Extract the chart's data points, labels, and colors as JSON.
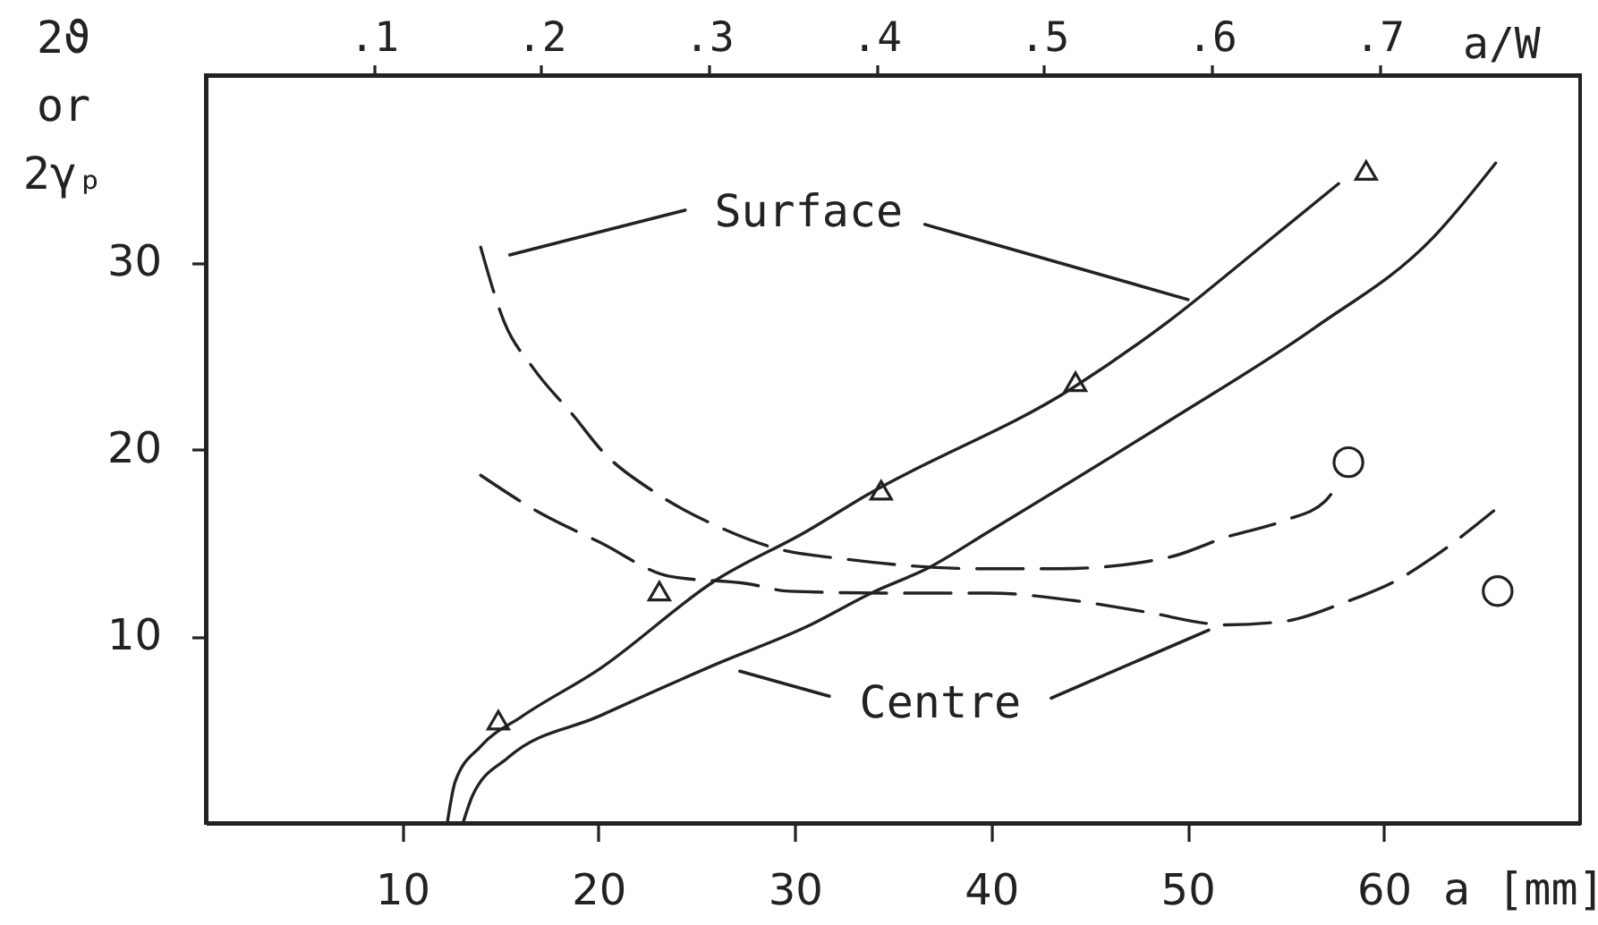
{
  "chart_data": {
    "type": "line",
    "xlabel": "a [mm]",
    "ylabel": "2ϑ or 2γₚ",
    "x2label": "a/W",
    "xlim": [
      0,
      70
    ],
    "xticks": [
      10,
      20,
      30,
      40,
      50,
      60
    ],
    "ylim": [
      0,
      40
    ],
    "yticks": [
      10,
      20,
      30
    ],
    "x2lim": [
      0,
      0.82
    ],
    "x2ticks": [
      {
        "value": 0.1,
        "label": ".1"
      },
      {
        "value": 0.2,
        "label": ".2"
      },
      {
        "value": 0.3,
        "label": ".3"
      },
      {
        "value": 0.4,
        "label": ".4"
      },
      {
        "value": 0.5,
        "label": ".5"
      },
      {
        "value": 0.6,
        "label": ".6"
      },
      {
        "value": 0.7,
        "label": ".7"
      }
    ],
    "grid": false,
    "annotations": [
      {
        "text": "Surface",
        "x": 50.3,
        "y": 27.9
      },
      {
        "text": "Centre",
        "x": 50.9,
        "y": 10.8
      }
    ],
    "series": [
      {
        "color": "#222222",
        "line_style": "solid",
        "marker": "none",
        "x": [
          12.3,
          12.7,
          14.0,
          16.1,
          20.0,
          26.0,
          30.6,
          33.6,
          44.2,
          49.0,
          53.5,
          57.7
        ],
        "values": [
          0,
          2.2,
          4.1,
          5.7,
          8.2,
          13.0,
          15.6,
          17.5,
          23.3,
          26.8,
          30.6,
          34.2
        ]
      },
      {
        "type": "scatter",
        "color": "#222222",
        "marker": "triangle",
        "x": [
          14.9,
          23.1,
          34.4,
          44.3,
          59.1
        ],
        "values": [
          5.5,
          12.4,
          17.8,
          23.6,
          34.9
        ]
      },
      {
        "color": "#222222",
        "line_style": "solid",
        "marker": "none",
        "x": [
          13.1,
          13.6,
          15.4,
          20.0,
          26.0,
          30.6,
          33.9,
          36.9,
          39.9,
          48.9,
          56.5,
          62.5,
          65.7
        ],
        "values": [
          0,
          1.5,
          3.5,
          5.7,
          8.5,
          10.5,
          12.3,
          13.7,
          15.6,
          21.4,
          26.5,
          31.3,
          35.3
        ]
      },
      {
        "color": "#222222",
        "line_style": "dashed",
        "marker": "none",
        "x": [
          14.0,
          15.2,
          16.7,
          18.8,
          20.1,
          23.0,
          26.0,
          29.0,
          32.7,
          39.6,
          43.5,
          49.0,
          52.0,
          55.0,
          57.0,
          57.6
        ],
        "values": [
          30.8,
          26.8,
          24.3,
          21.7,
          20.0,
          17.6,
          15.9,
          14.7,
          14.1,
          13.6,
          13.6,
          14.2,
          15.3,
          16.2,
          17.2,
          18.0
        ]
      },
      {
        "color": "#222222",
        "line_style": "dashed",
        "marker": "none",
        "x": [
          14.0,
          17.0,
          20.1,
          23.6,
          27.6,
          29.7,
          34.5,
          39.9,
          44.2,
          47.8,
          52.0,
          55.0,
          58.0,
          60.7,
          62.5,
          65.6
        ],
        "values": [
          18.6,
          16.6,
          15.0,
          13.2,
          12.8,
          12.4,
          12.3,
          12.3,
          11.9,
          11.3,
          10.6,
          10.8,
          11.8,
          13.0,
          14.2,
          16.7
        ]
      },
      {
        "type": "scatter",
        "color": "#222222",
        "marker": "circle",
        "x": [
          58.2,
          65.8
        ],
        "values": [
          19.3,
          12.4
        ]
      }
    ]
  }
}
